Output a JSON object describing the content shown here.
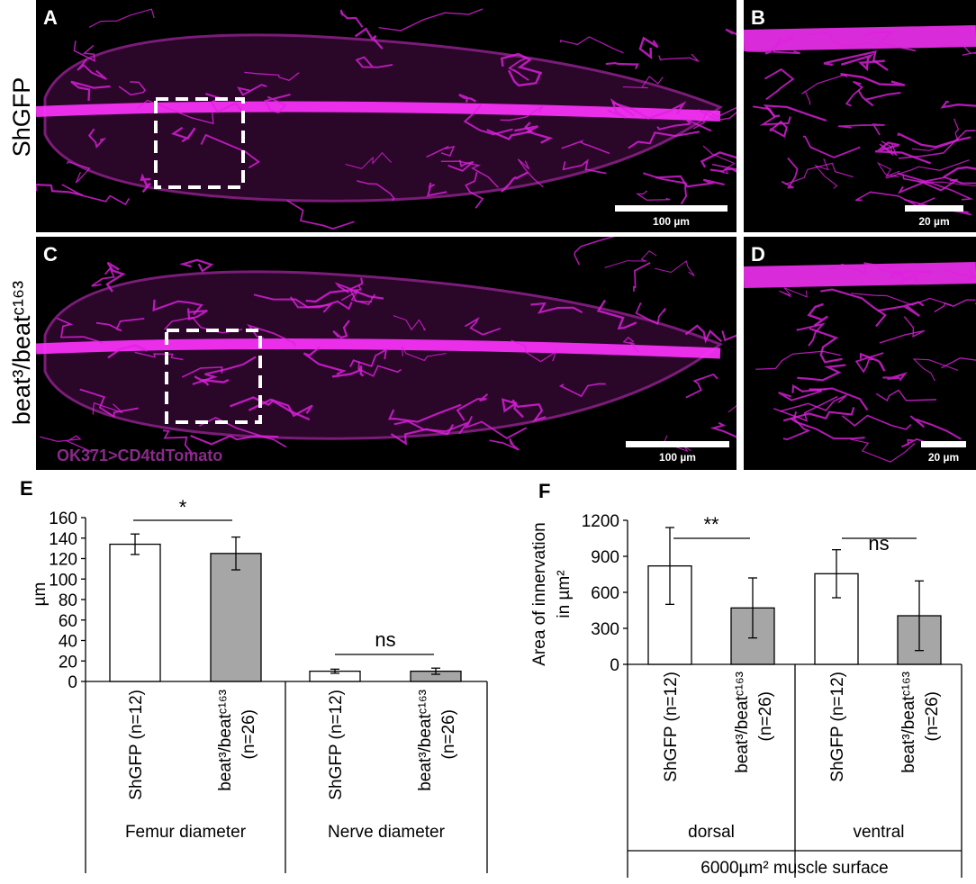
{
  "panels": {
    "labels": [
      "A",
      "B",
      "C",
      "D"
    ],
    "row_labels": [
      "ShGFP",
      "beat³/beatᶜ¹⁶³"
    ],
    "scale_bars": [
      "100 µm",
      "20 µm",
      "100 µm",
      "20 µm"
    ],
    "stain": "OK371>CD4tdTomato"
  },
  "chart_data": [
    {
      "type": "bar",
      "panel": "E",
      "ylabel": [
        "µm"
      ],
      "categories": [
        [
          "ShGFP (n=12)"
        ],
        [
          "beat³/beatᶜ¹⁶³",
          "(n=26)"
        ],
        [
          "ShGFP (n=12)"
        ],
        [
          "beat³/beatᶜ¹⁶³",
          "(n=26)"
        ]
      ],
      "groups": [
        "Femur diameter",
        "Nerve diameter"
      ],
      "values": [
        134,
        125,
        10,
        10
      ],
      "errors": [
        10,
        16,
        2,
        3
      ],
      "colors": [
        "#ffffff",
        "#a6a6a6",
        "#ffffff",
        "#a6a6a6"
      ],
      "annotations": [
        "*",
        "ns"
      ],
      "ylim": [
        0,
        160
      ],
      "yticks": [
        0,
        20,
        40,
        60,
        80,
        100,
        120,
        140,
        160
      ]
    },
    {
      "type": "bar",
      "panel": "F",
      "ylabel": [
        "Area of innervation",
        "in µm²"
      ],
      "categories": [
        [
          "ShGFP (n=12)"
        ],
        [
          "beat³/beatᶜ¹⁶³",
          "(n=26)"
        ],
        [
          "ShGFP (n=12)"
        ],
        [
          "beat³/beatᶜ¹⁶³",
          "(n=26)"
        ]
      ],
      "groups": [
        "dorsal",
        "ventral"
      ],
      "group_title": "6000µm² muscle surface",
      "values": [
        820,
        470,
        755,
        405
      ],
      "errors": [
        320,
        250,
        200,
        290
      ],
      "colors": [
        "#ffffff",
        "#a6a6a6",
        "#ffffff",
        "#a6a6a6"
      ],
      "annotations": [
        "**",
        "ns"
      ],
      "ylim": [
        0,
        1200
      ],
      "yticks": [
        0,
        300,
        600,
        900,
        1200
      ]
    }
  ]
}
